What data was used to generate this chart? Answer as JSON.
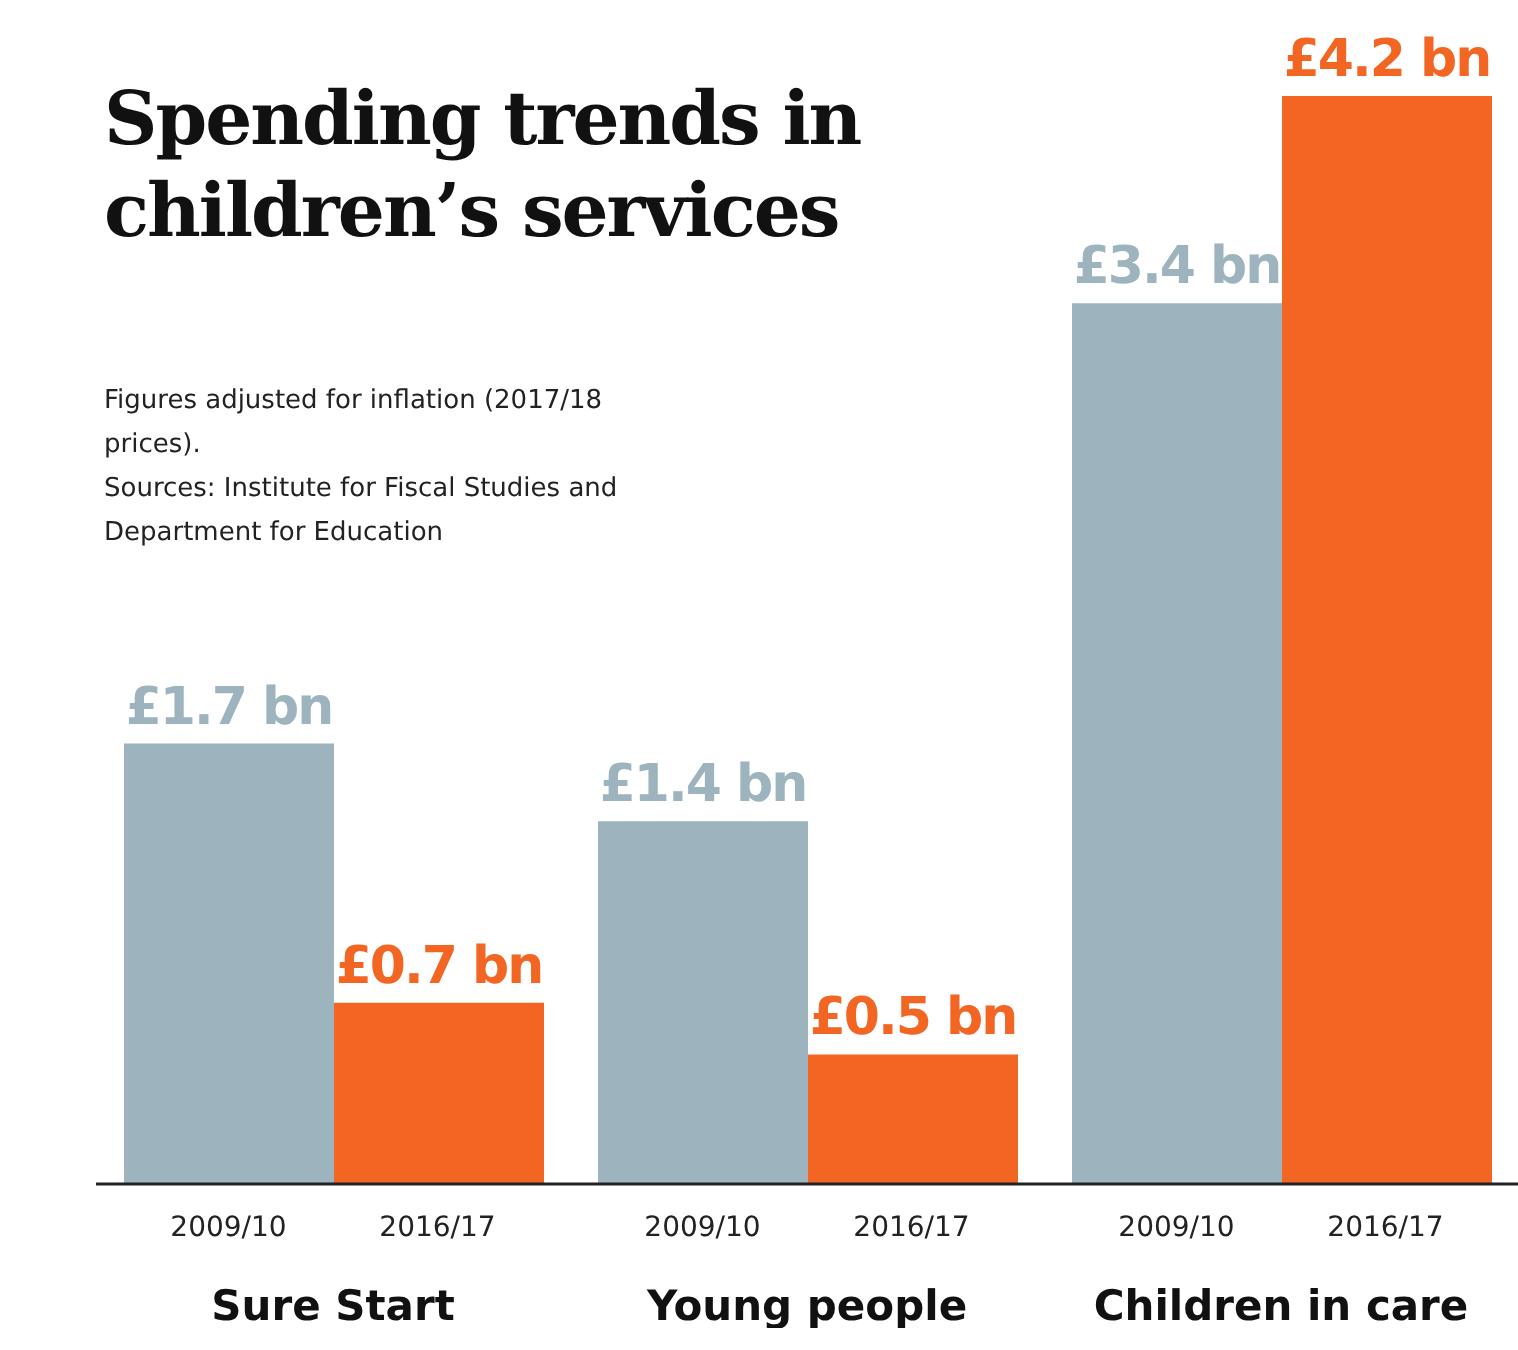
{
  "chart_data": {
    "type": "bar",
    "title": "Spending trends in children’s services",
    "subtitle": "Figures adjusted for inflation (2017/18 prices).",
    "annotations": [
      "Sources: Institute for Fiscal Studies and Department for Education"
    ],
    "categories": [
      "Sure Start",
      "Young people",
      "Children in care"
    ],
    "series": [
      {
        "name": "2009/10",
        "color": "#9db3bd",
        "values": [
          1.7,
          1.4,
          3.4
        ],
        "value_labels": [
          "£1.7 bn",
          "£1.4 bn",
          "£3.4 bn"
        ]
      },
      {
        "name": "2016/17",
        "color": "#f26522",
        "values": [
          0.7,
          0.5,
          4.2
        ],
        "value_labels": [
          "£0.7 bn",
          "£0.5 bn",
          "£4.2 bn"
        ]
      }
    ]
  }
}
